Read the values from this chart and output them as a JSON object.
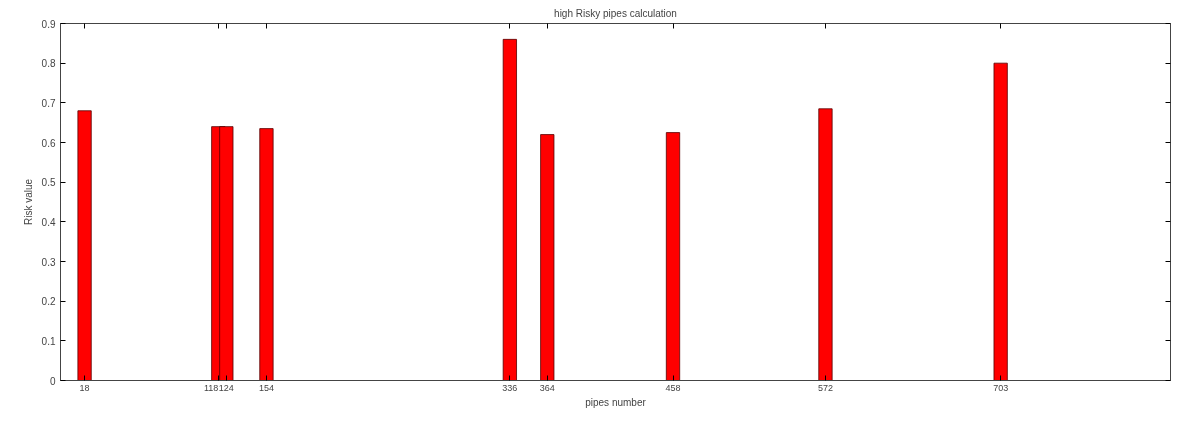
{
  "chart_data": {
    "type": "bar",
    "title": "high Risky pipes calculation",
    "xlabel": "pipes number",
    "ylabel": "Risk value",
    "x": [
      18,
      118,
      124,
      154,
      336,
      364,
      458,
      572,
      703
    ],
    "series": [
      {
        "color": "#ff0000",
        "values": [
          0.68,
          0.64,
          0.64,
          0.635,
          0.86,
          0.62,
          0.625,
          0.685,
          0.8
        ]
      }
    ],
    "xlim": [
      0,
      830
    ],
    "xticks": [
      18,
      118,
      124,
      154,
      336,
      364,
      458,
      572,
      703
    ],
    "ylim": [
      0,
      0.9
    ],
    "yticks": [
      0,
      0.1,
      0.2,
      0.3,
      0.4,
      0.5,
      0.6,
      0.7,
      0.8,
      0.9
    ],
    "grid": false
  }
}
